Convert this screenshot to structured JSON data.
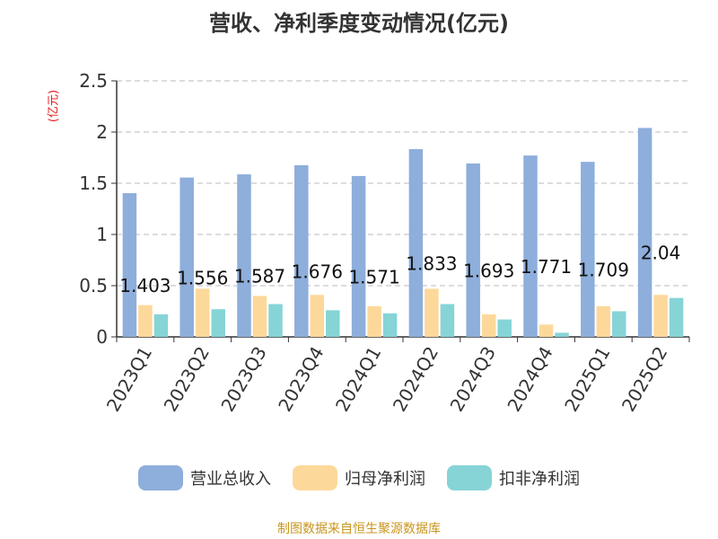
{
  "title": "营收、净利季度变动情况(亿元)",
  "unit_label": "(亿元)",
  "source": "制图数据来自恒生聚源数据库",
  "chart_data": {
    "type": "bar",
    "categories": [
      "2023Q1",
      "2023Q2",
      "2023Q3",
      "2023Q4",
      "2024Q1",
      "2024Q2",
      "2024Q3",
      "2024Q4",
      "2025Q1",
      "2025Q2"
    ],
    "series": [
      {
        "name": "营业总收入",
        "color": "#8eaedb",
        "values": [
          1.403,
          1.556,
          1.587,
          1.676,
          1.571,
          1.833,
          1.693,
          1.771,
          1.709,
          2.04
        ],
        "labels": [
          "1.403",
          "1.556",
          "1.587",
          "1.676",
          "1.571",
          "1.833",
          "1.693",
          "1.771",
          "1.709",
          "2.04"
        ]
      },
      {
        "name": "归母净利润",
        "color": "#fdd89b",
        "values": [
          0.31,
          0.47,
          0.4,
          0.41,
          0.3,
          0.47,
          0.22,
          0.12,
          0.3,
          0.41
        ]
      },
      {
        "name": "扣非净利润",
        "color": "#86d4d6",
        "values": [
          0.22,
          0.27,
          0.32,
          0.26,
          0.23,
          0.32,
          0.17,
          0.04,
          0.25,
          0.38
        ]
      }
    ],
    "ylim": [
      0,
      2.5
    ],
    "yticks": [
      "0",
      "0.5",
      "1",
      "1.5",
      "2",
      "2.5"
    ],
    "grid": true,
    "legend_position": "bottom"
  }
}
